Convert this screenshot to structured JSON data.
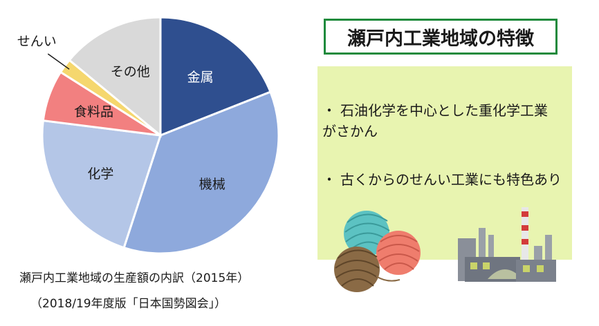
{
  "chart_data": {
    "type": "pie",
    "start": "12 o'clock, clockwise",
    "series": [
      {
        "label": "金属",
        "value": 19,
        "color": "#2f4f8f",
        "label_color": "#ffffff"
      },
      {
        "label": "機械",
        "value": 36,
        "color": "#8ea9dc",
        "label_color": "#1a1a1a"
      },
      {
        "label": "化学",
        "value": 22,
        "color": "#b4c6e7",
        "label_color": "#1a1a1a"
      },
      {
        "label": "食料品",
        "value": 7,
        "color": "#f28080",
        "label_color": "#1a1a1a"
      },
      {
        "label": "せんい",
        "value": 2,
        "color": "#f5d76e",
        "label_color": "#1a1a1a",
        "label_outside": true
      },
      {
        "label": "その他",
        "value": 14,
        "color": "#d9d9d9",
        "label_color": "#1a1a1a"
      }
    ]
  },
  "caption": {
    "line1": "瀬戸内工業地域の生産額の内訳（2015年）",
    "line2": "（2018/19年度版「日本国勢図会」）"
  },
  "features": {
    "title": "瀬戸内工業地域の特徴",
    "bullet_mark": "・",
    "bullets": [
      "石油化学を中心とした重化学工業がさかん",
      "古くからのせんい工業にも特色あり"
    ]
  },
  "illustrations": [
    "yarn-balls-icon",
    "factory-icon"
  ]
}
